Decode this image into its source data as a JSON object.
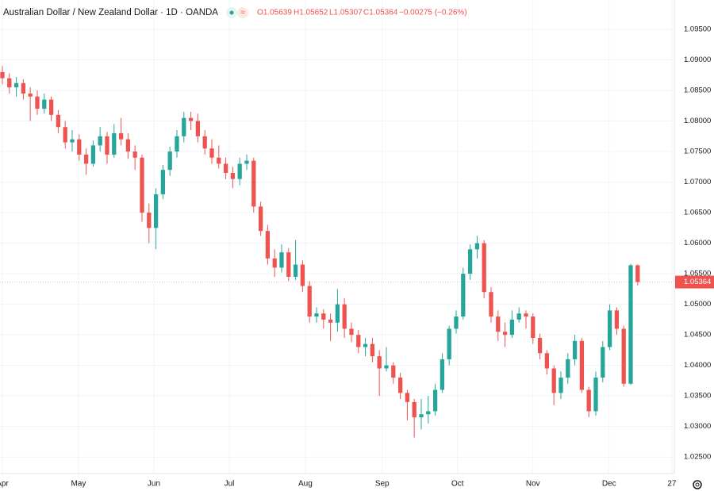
{
  "header": {
    "symbol": "Australian Dollar / New Zealand Dollar · 1D · OANDA",
    "open": "O1.05639",
    "high": "H1.05652",
    "low": "L1.05307",
    "close": "C1.05364",
    "change": "−0.00275 (−0.26%)"
  },
  "chart_data": {
    "type": "candlestick",
    "up_color": "#26a69a",
    "down_color": "#ef5350",
    "grid": true,
    "price_label": "1.05364",
    "xlim": [
      -0.34,
      96.25
    ],
    "xticks": [
      {
        "value": 0,
        "label": "Apr"
      },
      {
        "value": 10.9,
        "label": "May"
      },
      {
        "value": 21.7,
        "label": "Jun"
      },
      {
        "value": 32.5,
        "label": "Jul"
      },
      {
        "value": 43.4,
        "label": "Aug"
      },
      {
        "value": 54.4,
        "label": "Sep"
      },
      {
        "value": 65.2,
        "label": "Oct"
      },
      {
        "value": 76,
        "label": "Nov"
      },
      {
        "value": 86.9,
        "label": "Dec"
      },
      {
        "value": 95.9,
        "label": "27"
      }
    ],
    "ylim": [
      1.0223,
      1.0998
    ],
    "yticks": [
      {
        "value": 1.025,
        "label": "1.02500"
      },
      {
        "value": 1.03,
        "label": "1.03000"
      },
      {
        "value": 1.035,
        "label": "1.03500"
      },
      {
        "value": 1.04,
        "label": "1.04000"
      },
      {
        "value": 1.045,
        "label": "1.04500"
      },
      {
        "value": 1.05,
        "label": "1.05000"
      },
      {
        "value": 1.055,
        "label": "1.05500"
      },
      {
        "value": 1.06,
        "label": "1.06000"
      },
      {
        "value": 1.065,
        "label": "1.06500"
      },
      {
        "value": 1.07,
        "label": "1.07000"
      },
      {
        "value": 1.075,
        "label": "1.07500"
      },
      {
        "value": 1.08,
        "label": "1.08000"
      },
      {
        "value": 1.085,
        "label": "1.08500"
      },
      {
        "value": 1.09,
        "label": "1.09000"
      },
      {
        "value": 1.095,
        "label": "1.09500"
      }
    ],
    "ohlc": [
      [
        1.088,
        1.089,
        1.086,
        1.087
      ],
      [
        1.087,
        1.0878,
        1.0845,
        1.0855
      ],
      [
        1.0855,
        1.0872,
        1.084,
        1.0862
      ],
      [
        1.0862,
        1.0868,
        1.0835,
        1.0845
      ],
      [
        1.0845,
        1.0855,
        1.08,
        1.084
      ],
      [
        1.084,
        1.085,
        1.081,
        1.082
      ],
      [
        1.082,
        1.0845,
        1.0812,
        1.0835
      ],
      [
        1.0835,
        1.084,
        1.08,
        1.081
      ],
      [
        1.081,
        1.0818,
        1.078,
        1.079
      ],
      [
        1.079,
        1.08,
        1.0755,
        1.0765
      ],
      [
        1.0765,
        1.0785,
        1.075,
        1.077
      ],
      [
        1.077,
        1.0778,
        1.0735,
        1.0745
      ],
      [
        1.0745,
        1.0755,
        1.0712,
        1.073
      ],
      [
        1.073,
        1.0768,
        1.0725,
        1.076
      ],
      [
        1.076,
        1.079,
        1.075,
        1.0775
      ],
      [
        1.0775,
        1.0782,
        1.073,
        1.0745
      ],
      [
        1.0745,
        1.0795,
        1.074,
        1.078
      ],
      [
        1.078,
        1.0805,
        1.076,
        1.077
      ],
      [
        1.077,
        1.078,
        1.0738,
        1.075
      ],
      [
        1.075,
        1.076,
        1.072,
        1.074
      ],
      [
        1.074,
        1.0745,
        1.0635,
        1.065
      ],
      [
        1.065,
        1.0665,
        1.06,
        1.0625
      ],
      [
        1.0625,
        1.069,
        1.059,
        1.068
      ],
      [
        1.068,
        1.0728,
        1.0672,
        1.072
      ],
      [
        1.072,
        1.0758,
        1.071,
        1.075
      ],
      [
        1.075,
        1.0785,
        1.074,
        1.0775
      ],
      [
        1.0775,
        1.0815,
        1.0765,
        1.0805
      ],
      [
        1.0805,
        1.0815,
        1.0785,
        1.08
      ],
      [
        1.08,
        1.0812,
        1.0765,
        1.0775
      ],
      [
        1.0775,
        1.0785,
        1.0745,
        1.0755
      ],
      [
        1.0755,
        1.077,
        1.073,
        1.074
      ],
      [
        1.074,
        1.076,
        1.0722,
        1.073
      ],
      [
        1.073,
        1.074,
        1.0705,
        1.0715
      ],
      [
        1.0715,
        1.0725,
        1.069,
        1.0705
      ],
      [
        1.0705,
        1.074,
        1.0695,
        1.073
      ],
      [
        1.073,
        1.0745,
        1.072,
        1.0735
      ],
      [
        1.0735,
        1.074,
        1.065,
        1.066
      ],
      [
        1.066,
        1.0668,
        1.0612,
        1.062
      ],
      [
        1.062,
        1.063,
        1.0565,
        1.0575
      ],
      [
        1.0575,
        1.059,
        1.0545,
        1.056
      ],
      [
        1.056,
        1.0598,
        1.0552,
        1.0585
      ],
      [
        1.0585,
        1.0592,
        1.0538,
        1.0545
      ],
      [
        1.0545,
        1.0605,
        1.054,
        1.0565
      ],
      [
        1.0565,
        1.0572,
        1.052,
        1.053
      ],
      [
        1.053,
        1.0538,
        1.047,
        1.048
      ],
      [
        1.048,
        1.0495,
        1.047,
        1.0485
      ],
      [
        1.0485,
        1.0492,
        1.046,
        1.0475
      ],
      [
        1.0475,
        1.0485,
        1.044,
        1.047
      ],
      [
        1.047,
        1.0525,
        1.0455,
        1.05
      ],
      [
        1.05,
        1.051,
        1.0445,
        1.046
      ],
      [
        1.046,
        1.047,
        1.0438,
        1.045
      ],
      [
        1.045,
        1.0458,
        1.042,
        1.043
      ],
      [
        1.043,
        1.0445,
        1.0415,
        1.0435
      ],
      [
        1.0435,
        1.0445,
        1.0405,
        1.0415
      ],
      [
        1.0415,
        1.0425,
        1.035,
        1.0395
      ],
      [
        1.0395,
        1.043,
        1.039,
        1.04
      ],
      [
        1.04,
        1.0405,
        1.037,
        1.038
      ],
      [
        1.038,
        1.0388,
        1.0345,
        1.0355
      ],
      [
        1.0355,
        1.036,
        1.031,
        1.034
      ],
      [
        1.034,
        1.0345,
        1.0282,
        1.0315
      ],
      [
        1.0315,
        1.0345,
        1.0295,
        1.032
      ],
      [
        1.032,
        1.035,
        1.0305,
        1.0325
      ],
      [
        1.0325,
        1.037,
        1.0318,
        1.036
      ],
      [
        1.036,
        1.042,
        1.0355,
        1.041
      ],
      [
        1.041,
        1.0465,
        1.04,
        1.046
      ],
      [
        1.046,
        1.049,
        1.0452,
        1.048
      ],
      [
        1.048,
        1.056,
        1.0475,
        1.055
      ],
      [
        1.055,
        1.0598,
        1.054,
        1.059
      ],
      [
        1.059,
        1.0612,
        1.0575,
        1.06
      ],
      [
        1.06,
        1.0605,
        1.051,
        1.052
      ],
      [
        1.052,
        1.0528,
        1.047,
        1.048
      ],
      [
        1.048,
        1.049,
        1.044,
        1.0455
      ],
      [
        1.0455,
        1.047,
        1.043,
        1.045
      ],
      [
        1.045,
        1.049,
        1.0445,
        1.0475
      ],
      [
        1.0475,
        1.0495,
        1.047,
        1.0485
      ],
      [
        1.0485,
        1.049,
        1.046,
        1.048
      ],
      [
        1.048,
        1.0485,
        1.0435,
        1.0445
      ],
      [
        1.0445,
        1.0452,
        1.041,
        1.042
      ],
      [
        1.042,
        1.0425,
        1.0385,
        1.0395
      ],
      [
        1.0395,
        1.04,
        1.0335,
        1.0355
      ],
      [
        1.0355,
        1.039,
        1.0345,
        1.038
      ],
      [
        1.038,
        1.042,
        1.037,
        1.041
      ],
      [
        1.041,
        1.045,
        1.04,
        1.044
      ],
      [
        1.044,
        1.0445,
        1.0355,
        1.036
      ],
      [
        1.036,
        1.0365,
        1.0315,
        1.0325
      ],
      [
        1.0325,
        1.039,
        1.0318,
        1.038
      ],
      [
        1.038,
        1.044,
        1.0372,
        1.043
      ],
      [
        1.043,
        1.05,
        1.0425,
        1.049
      ],
      [
        1.049,
        1.0495,
        1.045,
        1.046
      ],
      [
        1.046,
        1.0465,
        1.0365,
        1.037
      ],
      [
        1.037,
        1.0566,
        1.0368,
        1.05639
      ],
      [
        1.05639,
        1.05652,
        1.05307,
        1.05364
      ]
    ]
  }
}
